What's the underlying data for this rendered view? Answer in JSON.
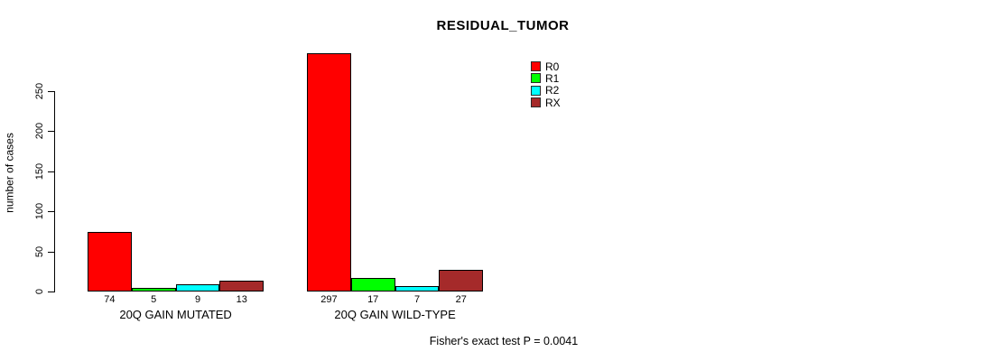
{
  "chart_data": {
    "type": "bar",
    "title": "RESIDUAL_TUMOR",
    "xlabel": "",
    "ylabel": "number of cases",
    "categories": [
      "20Q GAIN MUTATED",
      "20Q GAIN WILD-TYPE"
    ],
    "series": [
      {
        "name": "R0",
        "color": "#ff0000",
        "values": [
          74,
          297
        ]
      },
      {
        "name": "R1",
        "color": "#00ff00",
        "values": [
          5,
          17
        ]
      },
      {
        "name": "R2",
        "color": "#00ffff",
        "values": [
          9,
          7
        ]
      },
      {
        "name": "RX",
        "color": "#a52a2a",
        "values": [
          13,
          27
        ]
      }
    ],
    "yticks": [
      0,
      50,
      100,
      150,
      200,
      250
    ],
    "ylim": [
      0,
      297
    ],
    "grid": false,
    "legend_position": "top-right",
    "bar_border_color": "#000000",
    "background_color": "#ffffff",
    "annotation": "Fisher's exact test P = 0.0041"
  }
}
